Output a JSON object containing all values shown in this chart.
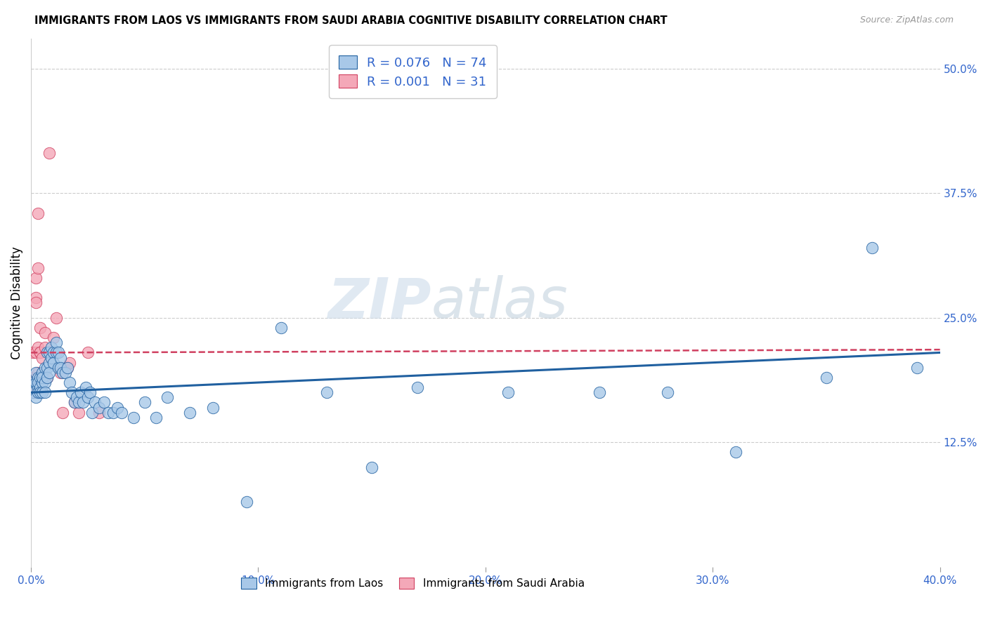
{
  "title": "IMMIGRANTS FROM LAOS VS IMMIGRANTS FROM SAUDI ARABIA COGNITIVE DISABILITY CORRELATION CHART",
  "source": "Source: ZipAtlas.com",
  "ylabel": "Cognitive Disability",
  "right_yticks": [
    "50.0%",
    "37.5%",
    "25.0%",
    "12.5%"
  ],
  "right_ytick_vals": [
    0.5,
    0.375,
    0.25,
    0.125
  ],
  "xmin": 0.0,
  "xmax": 0.4,
  "ymin": 0.0,
  "ymax": 0.53,
  "legend_r1": "R = 0.076",
  "legend_n1": "N = 74",
  "legend_r2": "R = 0.001",
  "legend_n2": "N = 31",
  "color_laos": "#a8c8e8",
  "color_saudi": "#f4a8b8",
  "line_color_laos": "#2060a0",
  "line_color_saudi": "#d04060",
  "watermark_zip": "ZIP",
  "watermark_atlas": "atlas",
  "laos_x": [
    0.001,
    0.001,
    0.002,
    0.002,
    0.002,
    0.003,
    0.003,
    0.003,
    0.003,
    0.004,
    0.004,
    0.004,
    0.005,
    0.005,
    0.005,
    0.005,
    0.006,
    0.006,
    0.006,
    0.007,
    0.007,
    0.007,
    0.008,
    0.008,
    0.008,
    0.009,
    0.009,
    0.01,
    0.01,
    0.011,
    0.011,
    0.012,
    0.012,
    0.013,
    0.013,
    0.014,
    0.015,
    0.016,
    0.017,
    0.018,
    0.019,
    0.02,
    0.021,
    0.022,
    0.023,
    0.024,
    0.025,
    0.026,
    0.027,
    0.028,
    0.03,
    0.032,
    0.034,
    0.036,
    0.038,
    0.04,
    0.045,
    0.05,
    0.055,
    0.06,
    0.07,
    0.08,
    0.095,
    0.11,
    0.13,
    0.15,
    0.17,
    0.21,
    0.25,
    0.28,
    0.31,
    0.35,
    0.37,
    0.39
  ],
  "laos_y": [
    0.185,
    0.175,
    0.195,
    0.185,
    0.17,
    0.19,
    0.18,
    0.175,
    0.185,
    0.19,
    0.18,
    0.175,
    0.195,
    0.185,
    0.175,
    0.19,
    0.2,
    0.185,
    0.175,
    0.215,
    0.2,
    0.19,
    0.215,
    0.205,
    0.195,
    0.22,
    0.21,
    0.215,
    0.205,
    0.215,
    0.225,
    0.2,
    0.215,
    0.21,
    0.2,
    0.195,
    0.195,
    0.2,
    0.185,
    0.175,
    0.165,
    0.17,
    0.165,
    0.175,
    0.165,
    0.18,
    0.17,
    0.175,
    0.155,
    0.165,
    0.16,
    0.165,
    0.155,
    0.155,
    0.16,
    0.155,
    0.15,
    0.165,
    0.15,
    0.17,
    0.155,
    0.16,
    0.065,
    0.24,
    0.175,
    0.1,
    0.18,
    0.175,
    0.175,
    0.175,
    0.115,
    0.19,
    0.32,
    0.2
  ],
  "saudi_x": [
    0.001,
    0.001,
    0.001,
    0.002,
    0.002,
    0.002,
    0.002,
    0.003,
    0.003,
    0.003,
    0.003,
    0.004,
    0.004,
    0.004,
    0.005,
    0.005,
    0.006,
    0.006,
    0.007,
    0.008,
    0.009,
    0.01,
    0.011,
    0.013,
    0.014,
    0.016,
    0.017,
    0.019,
    0.021,
    0.025,
    0.03
  ],
  "saudi_y": [
    0.215,
    0.19,
    0.175,
    0.29,
    0.27,
    0.265,
    0.215,
    0.3,
    0.22,
    0.195,
    0.355,
    0.24,
    0.215,
    0.215,
    0.21,
    0.195,
    0.235,
    0.22,
    0.19,
    0.415,
    0.215,
    0.23,
    0.25,
    0.195,
    0.155,
    0.2,
    0.205,
    0.165,
    0.155,
    0.215,
    0.155
  ],
  "laos_line_x0": 0.0,
  "laos_line_x1": 0.4,
  "laos_line_y0": 0.175,
  "laos_line_y1": 0.215,
  "saudi_line_x0": 0.0,
  "saudi_line_x1": 0.4,
  "saudi_line_y0": 0.215,
  "saudi_line_y1": 0.218
}
